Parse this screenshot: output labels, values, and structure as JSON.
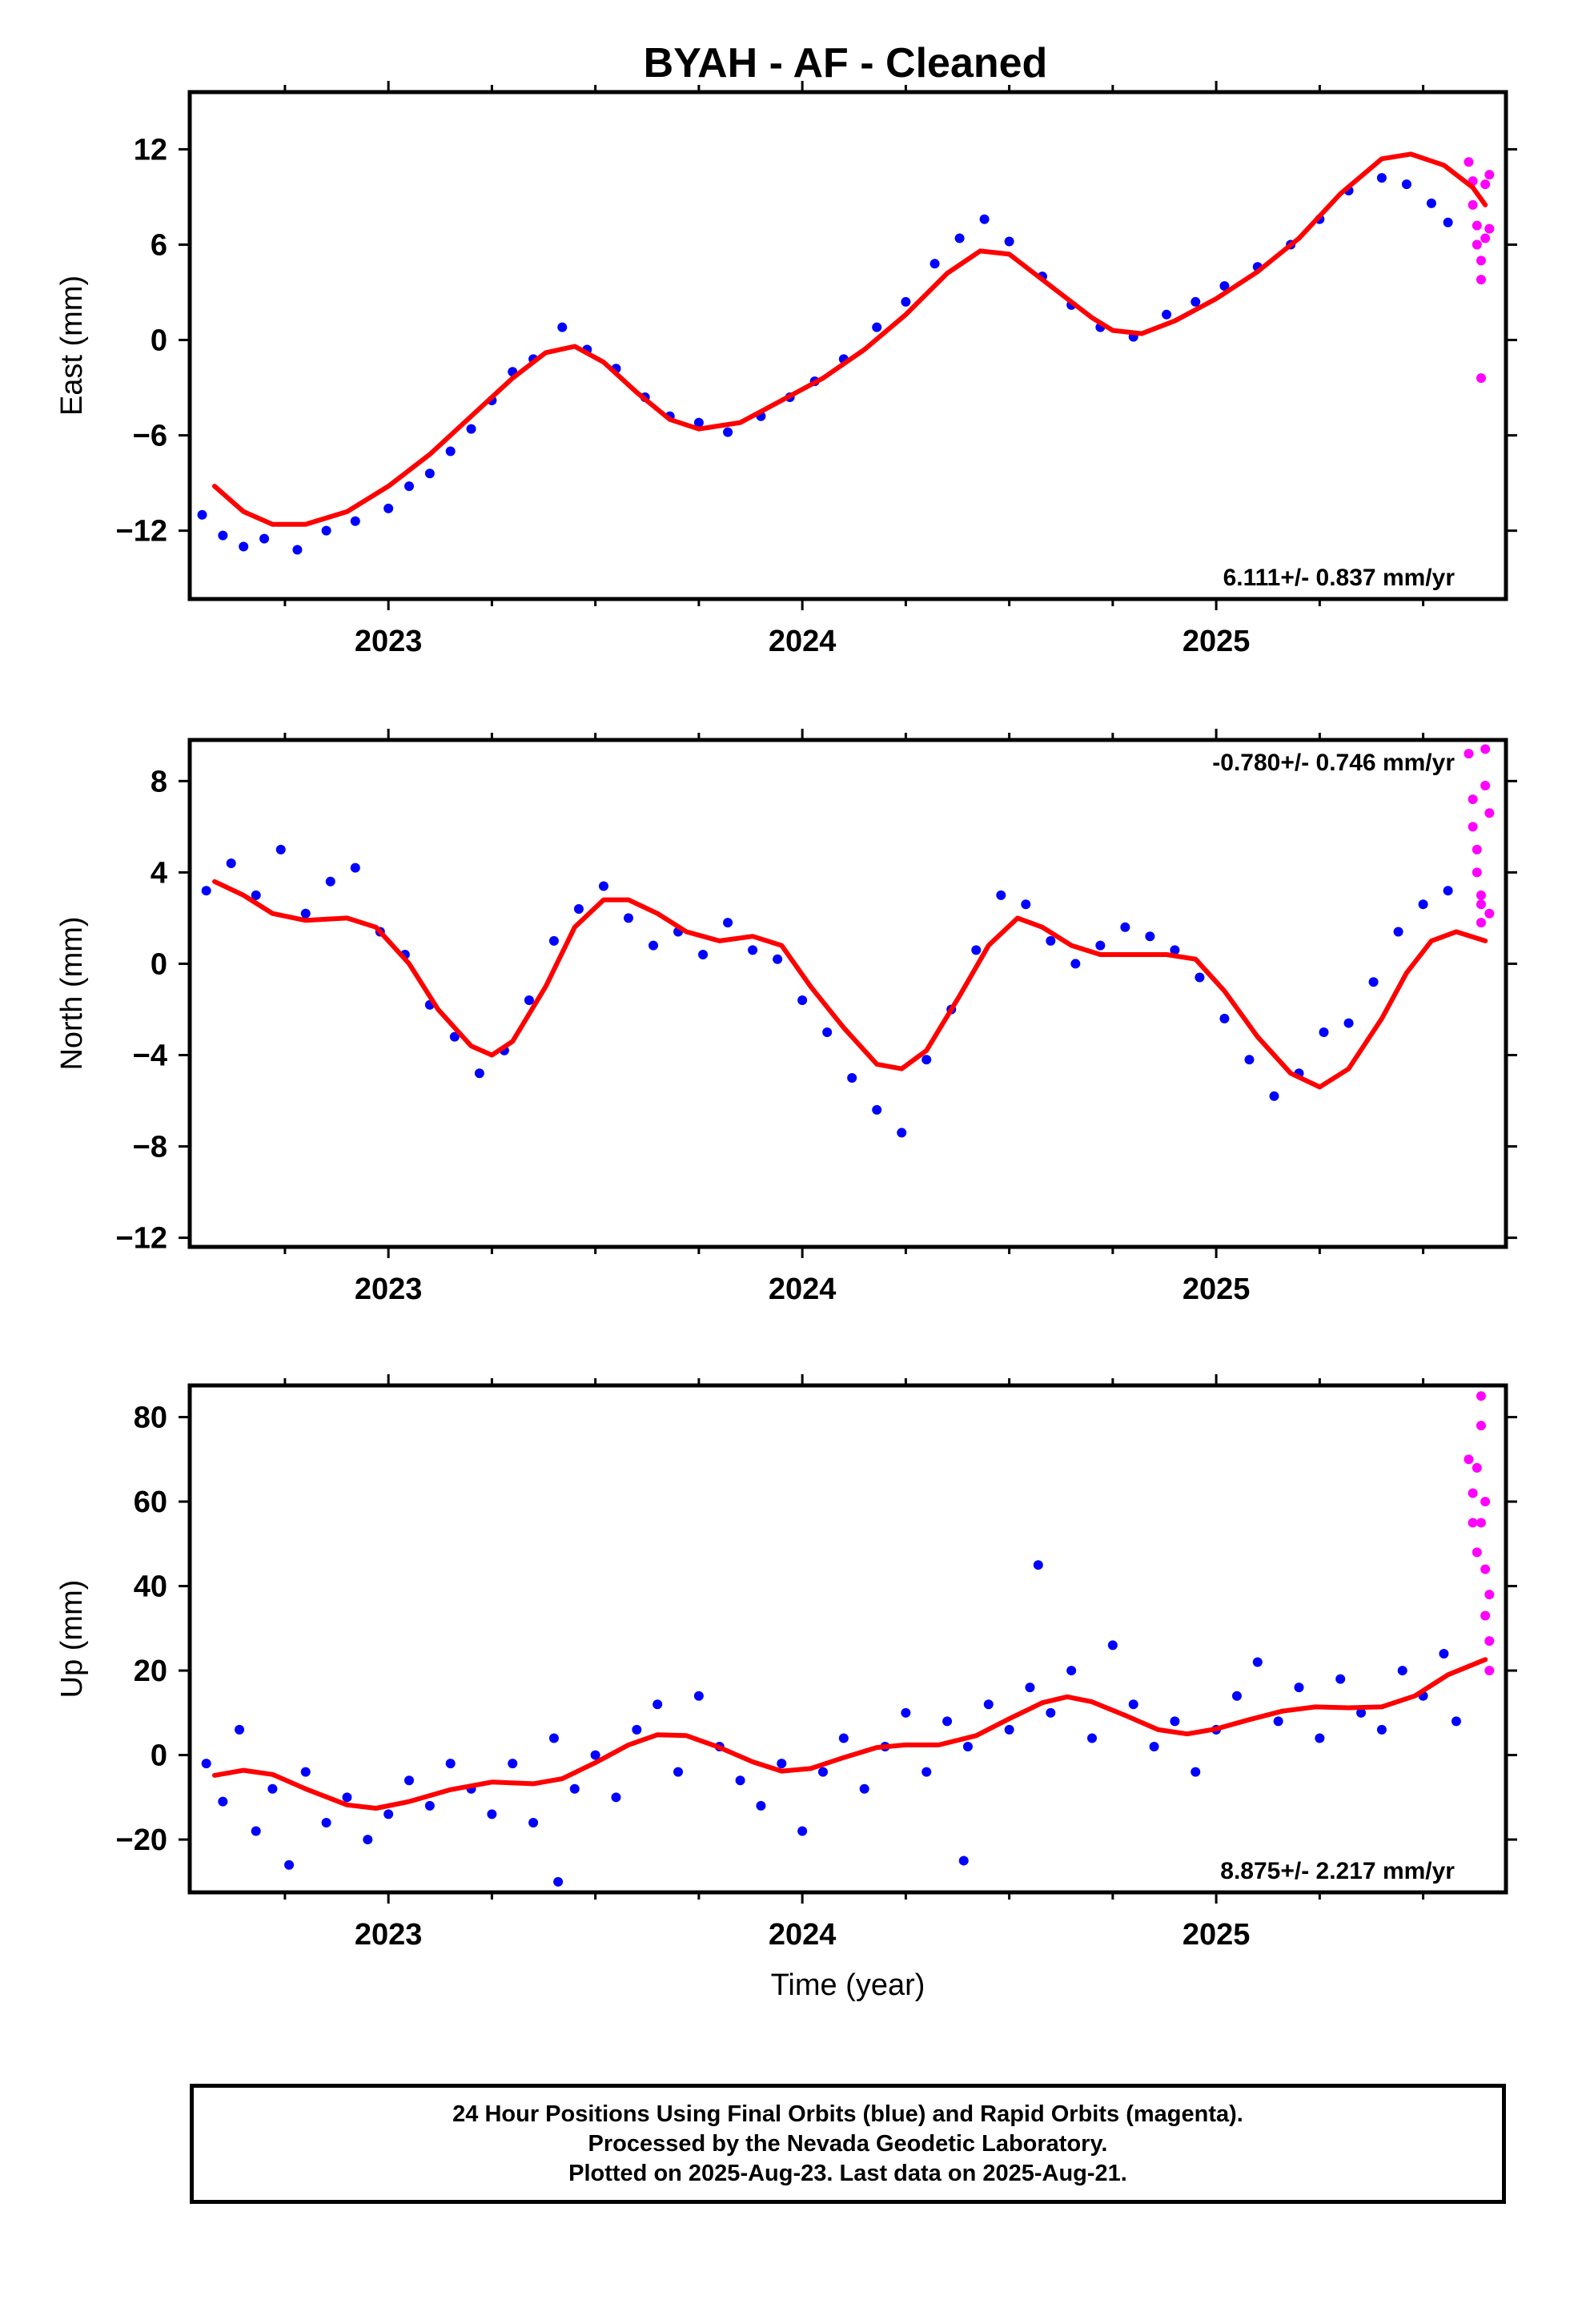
{
  "title": "BYAH  - AF - Cleaned",
  "colors": {
    "final": "#0000ff",
    "rapid": "#ff00ff",
    "fit": "#ff0000",
    "axis": "#000000"
  },
  "chart_data": [
    {
      "type": "scatter",
      "ylabel": "East (mm)",
      "xlabel": "",
      "xlim": [
        2022.52,
        2025.7
      ],
      "ylim": [
        -16.3,
        15.6
      ],
      "yticks": [
        -12,
        -6,
        0,
        6,
        12
      ],
      "xticks": [
        2023,
        2024,
        2025
      ],
      "rate": "6.111+/- 0.837 mm/yr",
      "rate_position": "bottom-right",
      "fit_curve": [
        [
          2022.58,
          -9.2
        ],
        [
          2022.65,
          -10.8
        ],
        [
          2022.72,
          -11.6
        ],
        [
          2022.8,
          -11.6
        ],
        [
          2022.9,
          -10.8
        ],
        [
          2023.0,
          -9.2
        ],
        [
          2023.1,
          -7.2
        ],
        [
          2023.2,
          -4.8
        ],
        [
          2023.3,
          -2.4
        ],
        [
          2023.38,
          -0.8
        ],
        [
          2023.45,
          -0.4
        ],
        [
          2023.52,
          -1.4
        ],
        [
          2023.6,
          -3.3
        ],
        [
          2023.68,
          -5.0
        ],
        [
          2023.75,
          -5.6
        ],
        [
          2023.85,
          -5.2
        ],
        [
          2023.95,
          -3.8
        ],
        [
          2024.05,
          -2.4
        ],
        [
          2024.15,
          -0.6
        ],
        [
          2024.25,
          1.6
        ],
        [
          2024.35,
          4.2
        ],
        [
          2024.43,
          5.6
        ],
        [
          2024.5,
          5.4
        ],
        [
          2024.6,
          3.4
        ],
        [
          2024.7,
          1.4
        ],
        [
          2024.75,
          0.6
        ],
        [
          2024.82,
          0.4
        ],
        [
          2024.9,
          1.2
        ],
        [
          2025.0,
          2.6
        ],
        [
          2025.1,
          4.3
        ],
        [
          2025.2,
          6.4
        ],
        [
          2025.3,
          9.2
        ],
        [
          2025.4,
          11.4
        ],
        [
          2025.47,
          11.7
        ],
        [
          2025.55,
          11.0
        ],
        [
          2025.62,
          9.6
        ],
        [
          2025.65,
          8.5
        ]
      ],
      "final_scatter": [
        [
          2022.55,
          -11.0
        ],
        [
          2022.6,
          -12.3
        ],
        [
          2022.65,
          -13.0
        ],
        [
          2022.7,
          -12.5
        ],
        [
          2022.78,
          -13.2
        ],
        [
          2022.85,
          -12.0
        ],
        [
          2022.92,
          -11.4
        ],
        [
          2023.0,
          -10.6
        ],
        [
          2023.05,
          -9.2
        ],
        [
          2023.1,
          -8.4
        ],
        [
          2023.15,
          -7.0
        ],
        [
          2023.2,
          -5.6
        ],
        [
          2023.25,
          -3.8
        ],
        [
          2023.3,
          -2.0
        ],
        [
          2023.35,
          -1.2
        ],
        [
          2023.42,
          0.8
        ],
        [
          2023.48,
          -0.6
        ],
        [
          2023.55,
          -1.8
        ],
        [
          2023.62,
          -3.6
        ],
        [
          2023.68,
          -4.8
        ],
        [
          2023.75,
          -5.2
        ],
        [
          2023.82,
          -5.8
        ],
        [
          2023.9,
          -4.8
        ],
        [
          2023.97,
          -3.6
        ],
        [
          2024.03,
          -2.6
        ],
        [
          2024.1,
          -1.2
        ],
        [
          2024.18,
          0.8
        ],
        [
          2024.25,
          2.4
        ],
        [
          2024.32,
          4.8
        ],
        [
          2024.38,
          6.4
        ],
        [
          2024.44,
          7.6
        ],
        [
          2024.5,
          6.2
        ],
        [
          2024.58,
          4.0
        ],
        [
          2024.65,
          2.2
        ],
        [
          2024.72,
          0.8
        ],
        [
          2024.8,
          0.2
        ],
        [
          2024.88,
          1.6
        ],
        [
          2024.95,
          2.4
        ],
        [
          2025.02,
          3.4
        ],
        [
          2025.1,
          4.6
        ],
        [
          2025.18,
          6.0
        ],
        [
          2025.25,
          7.6
        ],
        [
          2025.32,
          9.4
        ],
        [
          2025.4,
          10.2
        ],
        [
          2025.46,
          9.8
        ],
        [
          2025.52,
          8.6
        ],
        [
          2025.56,
          7.4
        ]
      ],
      "rapid_scatter": [
        [
          2025.61,
          11.2
        ],
        [
          2025.62,
          10.0
        ],
        [
          2025.62,
          8.5
        ],
        [
          2025.63,
          7.2
        ],
        [
          2025.63,
          6.0
        ],
        [
          2025.64,
          5.0
        ],
        [
          2025.64,
          3.8
        ],
        [
          2025.65,
          9.8
        ],
        [
          2025.65,
          6.4
        ],
        [
          2025.66,
          10.4
        ],
        [
          2025.66,
          7.0
        ],
        [
          2025.64,
          -2.4
        ]
      ]
    },
    {
      "type": "scatter",
      "ylabel": "North (mm)",
      "xlabel": "",
      "xlim": [
        2022.52,
        2025.7
      ],
      "ylim": [
        -12.4,
        9.8
      ],
      "yticks": [
        -12,
        -8,
        -4,
        0,
        4,
        8
      ],
      "xticks": [
        2023,
        2024,
        2025
      ],
      "rate": "-0.780+/- 0.746 mm/yr",
      "rate_position": "top-right",
      "fit_curve": [
        [
          2022.58,
          3.6
        ],
        [
          2022.65,
          3.0
        ],
        [
          2022.72,
          2.2
        ],
        [
          2022.8,
          1.9
        ],
        [
          2022.9,
          2.0
        ],
        [
          2022.97,
          1.6
        ],
        [
          2023.05,
          0.0
        ],
        [
          2023.12,
          -2.0
        ],
        [
          2023.2,
          -3.6
        ],
        [
          2023.25,
          -4.0
        ],
        [
          2023.3,
          -3.4
        ],
        [
          2023.38,
          -1.0
        ],
        [
          2023.45,
          1.6
        ],
        [
          2023.52,
          2.8
        ],
        [
          2023.58,
          2.8
        ],
        [
          2023.65,
          2.2
        ],
        [
          2023.72,
          1.4
        ],
        [
          2023.8,
          1.0
        ],
        [
          2023.88,
          1.2
        ],
        [
          2023.95,
          0.8
        ],
        [
          2024.02,
          -1.0
        ],
        [
          2024.1,
          -2.8
        ],
        [
          2024.18,
          -4.4
        ],
        [
          2024.24,
          -4.6
        ],
        [
          2024.3,
          -3.8
        ],
        [
          2024.38,
          -1.4
        ],
        [
          2024.45,
          0.8
        ],
        [
          2024.52,
          2.0
        ],
        [
          2024.58,
          1.6
        ],
        [
          2024.65,
          0.8
        ],
        [
          2024.72,
          0.4
        ],
        [
          2024.8,
          0.4
        ],
        [
          2024.88,
          0.4
        ],
        [
          2024.95,
          0.2
        ],
        [
          2025.02,
          -1.2
        ],
        [
          2025.1,
          -3.2
        ],
        [
          2025.18,
          -4.8
        ],
        [
          2025.25,
          -5.4
        ],
        [
          2025.32,
          -4.6
        ],
        [
          2025.4,
          -2.4
        ],
        [
          2025.46,
          -0.4
        ],
        [
          2025.52,
          1.0
        ],
        [
          2025.58,
          1.4
        ],
        [
          2025.65,
          1.0
        ]
      ],
      "final_scatter": [
        [
          2022.56,
          3.2
        ],
        [
          2022.62,
          4.4
        ],
        [
          2022.68,
          3.0
        ],
        [
          2022.74,
          5.0
        ],
        [
          2022.8,
          2.2
        ],
        [
          2022.86,
          3.6
        ],
        [
          2022.92,
          4.2
        ],
        [
          2022.98,
          1.4
        ],
        [
          2023.04,
          0.4
        ],
        [
          2023.1,
          -1.8
        ],
        [
          2023.16,
          -3.2
        ],
        [
          2023.22,
          -4.8
        ],
        [
          2023.28,
          -3.8
        ],
        [
          2023.34,
          -1.6
        ],
        [
          2023.4,
          1.0
        ],
        [
          2023.46,
          2.4
        ],
        [
          2023.52,
          3.4
        ],
        [
          2023.58,
          2.0
        ],
        [
          2023.64,
          0.8
        ],
        [
          2023.7,
          1.4
        ],
        [
          2023.76,
          0.4
        ],
        [
          2023.82,
          1.8
        ],
        [
          2023.88,
          0.6
        ],
        [
          2023.94,
          0.2
        ],
        [
          2024.0,
          -1.6
        ],
        [
          2024.06,
          -3.0
        ],
        [
          2024.12,
          -5.0
        ],
        [
          2024.18,
          -6.4
        ],
        [
          2024.24,
          -7.4
        ],
        [
          2024.3,
          -4.2
        ],
        [
          2024.36,
          -2.0
        ],
        [
          2024.42,
          0.6
        ],
        [
          2024.48,
          3.0
        ],
        [
          2024.54,
          2.6
        ],
        [
          2024.6,
          1.0
        ],
        [
          2024.66,
          0.0
        ],
        [
          2024.72,
          0.8
        ],
        [
          2024.78,
          1.6
        ],
        [
          2024.84,
          1.2
        ],
        [
          2024.9,
          0.6
        ],
        [
          2024.96,
          -0.6
        ],
        [
          2025.02,
          -2.4
        ],
        [
          2025.08,
          -4.2
        ],
        [
          2025.14,
          -5.8
        ],
        [
          2025.2,
          -4.8
        ],
        [
          2025.26,
          -3.0
        ],
        [
          2025.32,
          -2.6
        ],
        [
          2025.38,
          -0.8
        ],
        [
          2025.44,
          1.4
        ],
        [
          2025.5,
          2.6
        ],
        [
          2025.56,
          3.2
        ]
      ],
      "rapid_scatter": [
        [
          2025.61,
          9.2
        ],
        [
          2025.62,
          7.2
        ],
        [
          2025.62,
          6.0
        ],
        [
          2025.63,
          5.0
        ],
        [
          2025.63,
          4.0
        ],
        [
          2025.64,
          3.0
        ],
        [
          2025.64,
          1.8
        ],
        [
          2025.65,
          9.4
        ],
        [
          2025.65,
          7.8
        ],
        [
          2025.66,
          6.6
        ],
        [
          2025.66,
          2.2
        ],
        [
          2025.64,
          2.6
        ]
      ]
    },
    {
      "type": "scatter",
      "ylabel": "Up (mm)",
      "xlabel": "Time (year)",
      "xlim": [
        2022.52,
        2025.7
      ],
      "ylim": [
        -32.5,
        87.5
      ],
      "yticks": [
        -20,
        0,
        20,
        40,
        60,
        80
      ],
      "xticks": [
        2023,
        2024,
        2025
      ],
      "rate": "8.875+/- 2.217 mm/yr",
      "rate_position": "bottom-right",
      "fit_curve": [
        [
          2022.58,
          -4.8
        ],
        [
          2022.65,
          -3.6
        ],
        [
          2022.72,
          -4.6
        ],
        [
          2022.8,
          -8.0
        ],
        [
          2022.9,
          -11.8
        ],
        [
          2022.97,
          -12.6
        ],
        [
          2023.05,
          -11.0
        ],
        [
          2023.15,
          -8.2
        ],
        [
          2023.25,
          -6.4
        ],
        [
          2023.35,
          -6.8
        ],
        [
          2023.42,
          -5.6
        ],
        [
          2023.5,
          -1.8
        ],
        [
          2023.58,
          2.4
        ],
        [
          2023.65,
          4.8
        ],
        [
          2023.72,
          4.6
        ],
        [
          2023.8,
          1.8
        ],
        [
          2023.88,
          -1.6
        ],
        [
          2023.95,
          -3.8
        ],
        [
          2024.02,
          -3.2
        ],
        [
          2024.1,
          -0.6
        ],
        [
          2024.18,
          1.8
        ],
        [
          2024.25,
          2.4
        ],
        [
          2024.33,
          2.4
        ],
        [
          2024.42,
          4.6
        ],
        [
          2024.5,
          8.6
        ],
        [
          2024.58,
          12.4
        ],
        [
          2024.64,
          13.8
        ],
        [
          2024.7,
          12.6
        ],
        [
          2024.78,
          9.4
        ],
        [
          2024.86,
          6.0
        ],
        [
          2024.93,
          5.0
        ],
        [
          2025.0,
          6.2
        ],
        [
          2025.08,
          8.4
        ],
        [
          2025.16,
          10.4
        ],
        [
          2025.24,
          11.4
        ],
        [
          2025.32,
          11.2
        ],
        [
          2025.4,
          11.4
        ],
        [
          2025.48,
          14.0
        ],
        [
          2025.56,
          19.0
        ],
        [
          2025.65,
          22.6
        ]
      ],
      "final_scatter": [
        [
          2022.56,
          -2.0
        ],
        [
          2022.6,
          -11.0
        ],
        [
          2022.64,
          6.0
        ],
        [
          2022.68,
          -18.0
        ],
        [
          2022.72,
          -8.0
        ],
        [
          2022.76,
          -26.0
        ],
        [
          2022.8,
          -4.0
        ],
        [
          2022.85,
          -16.0
        ],
        [
          2022.9,
          -10.0
        ],
        [
          2022.95,
          -20.0
        ],
        [
          2023.0,
          -14.0
        ],
        [
          2023.05,
          -6.0
        ],
        [
          2023.1,
          -12.0
        ],
        [
          2023.15,
          -2.0
        ],
        [
          2023.2,
          -8.0
        ],
        [
          2023.25,
          -14.0
        ],
        [
          2023.3,
          -2.0
        ],
        [
          2023.35,
          -16.0
        ],
        [
          2023.4,
          4.0
        ],
        [
          2023.45,
          -8.0
        ],
        [
          2023.5,
          0.0
        ],
        [
          2023.55,
          -10.0
        ],
        [
          2023.6,
          6.0
        ],
        [
          2023.65,
          12.0
        ],
        [
          2023.7,
          -4.0
        ],
        [
          2023.75,
          14.0
        ],
        [
          2023.8,
          2.0
        ],
        [
          2023.85,
          -6.0
        ],
        [
          2023.9,
          -12.0
        ],
        [
          2023.95,
          -2.0
        ],
        [
          2024.0,
          -18.0
        ],
        [
          2024.05,
          -4.0
        ],
        [
          2024.1,
          4.0
        ],
        [
          2024.15,
          -8.0
        ],
        [
          2024.2,
          2.0
        ],
        [
          2024.25,
          10.0
        ],
        [
          2024.3,
          -4.0
        ],
        [
          2024.35,
          8.0
        ],
        [
          2024.4,
          2.0
        ],
        [
          2024.45,
          12.0
        ],
        [
          2024.5,
          6.0
        ],
        [
          2024.55,
          16.0
        ],
        [
          2024.6,
          10.0
        ],
        [
          2024.65,
          20.0
        ],
        [
          2024.7,
          4.0
        ],
        [
          2024.75,
          26.0
        ],
        [
          2024.8,
          12.0
        ],
        [
          2024.85,
          2.0
        ],
        [
          2024.9,
          8.0
        ],
        [
          2024.95,
          -4.0
        ],
        [
          2025.0,
          6.0
        ],
        [
          2025.05,
          14.0
        ],
        [
          2025.1,
          22.0
        ],
        [
          2025.15,
          8.0
        ],
        [
          2025.2,
          16.0
        ],
        [
          2025.25,
          4.0
        ],
        [
          2025.3,
          18.0
        ],
        [
          2025.35,
          10.0
        ],
        [
          2025.4,
          6.0
        ],
        [
          2025.45,
          20.0
        ],
        [
          2025.5,
          14.0
        ],
        [
          2025.55,
          24.0
        ],
        [
          2025.58,
          8.0
        ],
        [
          2024.57,
          45.0
        ],
        [
          2023.41,
          -30.0
        ],
        [
          2024.39,
          -25.0
        ]
      ],
      "rapid_scatter": [
        [
          2025.61,
          70.0
        ],
        [
          2025.62,
          62.0
        ],
        [
          2025.62,
          55.0
        ],
        [
          2025.63,
          48.0
        ],
        [
          2025.63,
          68.0
        ],
        [
          2025.64,
          85.0
        ],
        [
          2025.64,
          78.0
        ],
        [
          2025.65,
          60.0
        ],
        [
          2025.65,
          44.0
        ],
        [
          2025.66,
          38.0
        ],
        [
          2025.66,
          27.0
        ],
        [
          2025.66,
          20.0
        ],
        [
          2025.65,
          33.0
        ],
        [
          2025.64,
          55.0
        ]
      ]
    }
  ],
  "footer": {
    "line1": "24 Hour Positions Using Final Orbits (blue) and Rapid Orbits (magenta).",
    "line2": "Processed by the Nevada Geodetic Laboratory.",
    "line3": "Plotted on 2025-Aug-23. Last data on 2025-Aug-21."
  }
}
